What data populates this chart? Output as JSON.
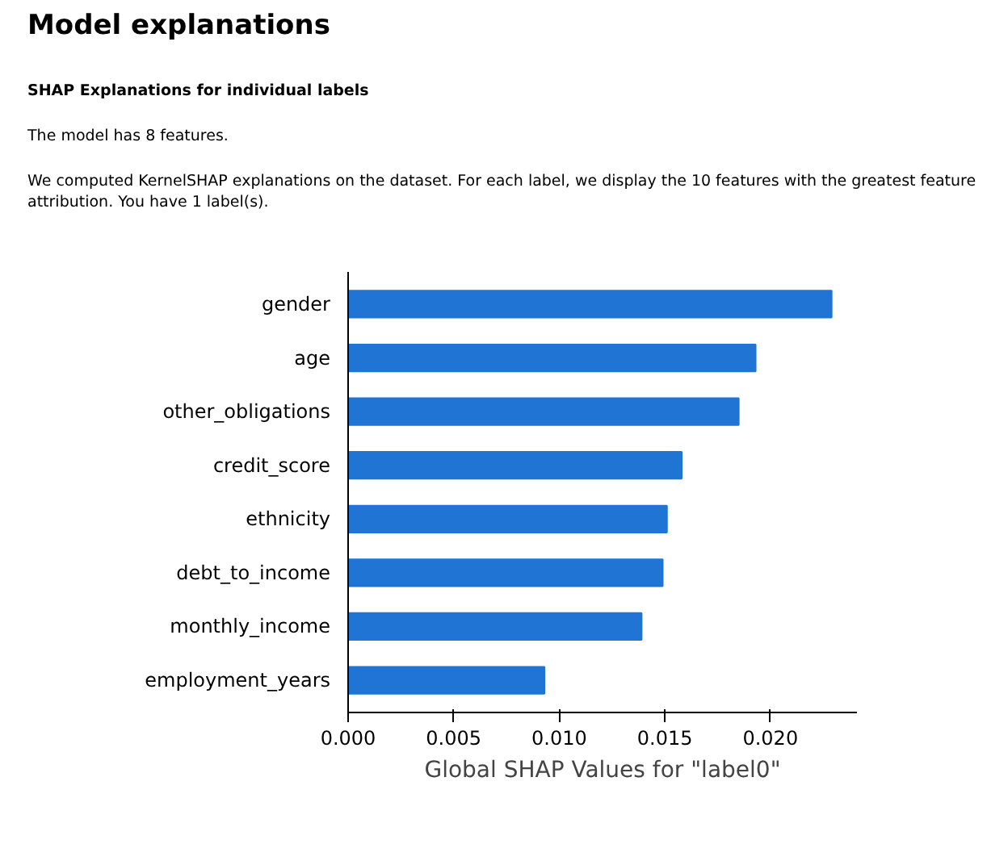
{
  "chart_data": {
    "type": "bar",
    "orientation": "horizontal",
    "title": "Model explanations",
    "subtitle": "SHAP Explanations for individual labels",
    "annotations": [
      "The model has 8 features.",
      "We computed KernelSHAP explanations on the dataset. For each label, we display the 10 features with the greatest feature attribution. You have 1 label(s)."
    ],
    "categories": [
      "gender",
      "age",
      "other_obligations",
      "credit_score",
      "ethnicity",
      "debt_to_income",
      "monthly_income",
      "employment_years"
    ],
    "values": [
      0.0229,
      0.0193,
      0.0185,
      0.0158,
      0.0151,
      0.0149,
      0.0139,
      0.0093
    ],
    "color": "#1f74d4",
    "xlabel": "Global SHAP Values for \"label0\"",
    "xlim": [
      0,
      0.0241
    ],
    "xticks": [
      {
        "value": 0,
        "label": "0.000"
      },
      {
        "value": 0.005,
        "label": "0.005"
      },
      {
        "value": 0.01,
        "label": "0.010"
      },
      {
        "value": 0.015,
        "label": "0.015"
      },
      {
        "value": 0.02,
        "label": "0.020"
      }
    ],
    "grid": false
  }
}
